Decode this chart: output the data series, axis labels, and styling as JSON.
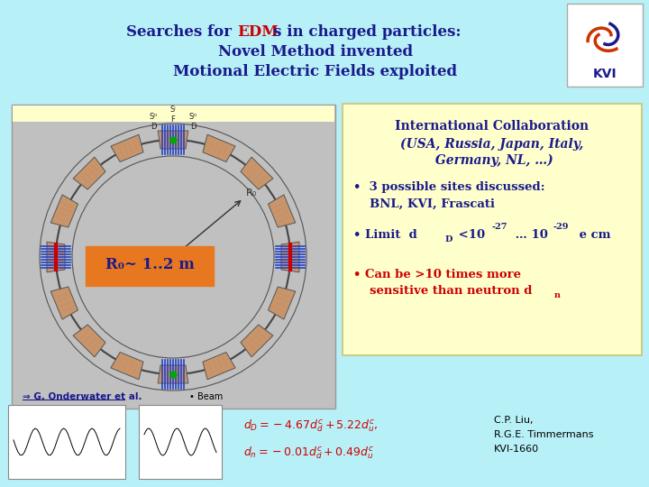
{
  "bg_color": "#b8f0f8",
  "title_color": "#1a1a8c",
  "title_edm_color": "#cc0000",
  "title_fontsize": 12,
  "text_color_dark": "#1a1a8c",
  "bullet3_color": "#cc0000",
  "bottom_eq_color": "#cc0000",
  "r0_box_color": "#e87820",
  "r0_text": "R₀~ 1..2 m",
  "arrow_text": "⇒ G. Onderwater et al.",
  "beam_text": "• Beam"
}
